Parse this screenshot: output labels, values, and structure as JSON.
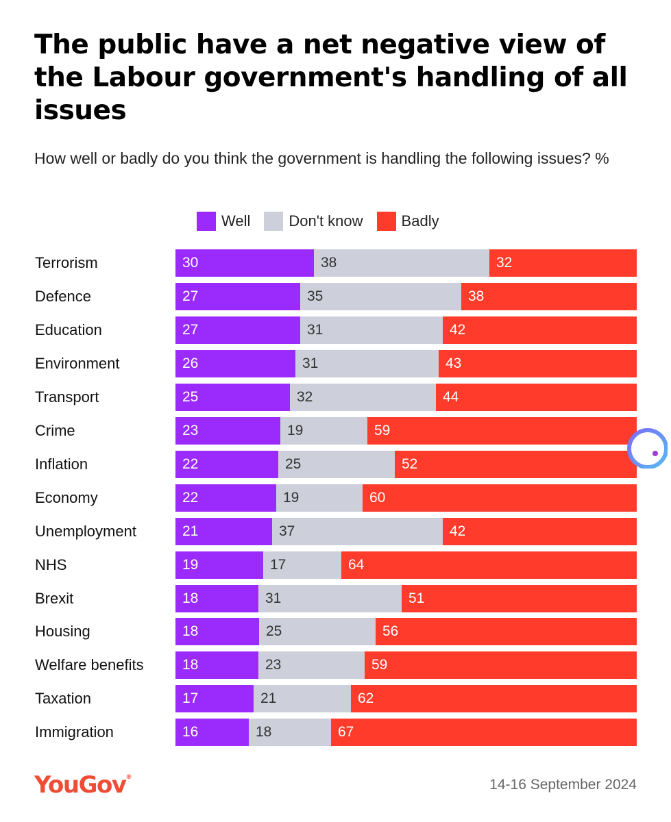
{
  "chart_data": {
    "type": "bar",
    "orientation": "horizontal",
    "stacked": true,
    "title": "The public have a net negative view of the Labour government's handling of all issues",
    "subtitle": "How well or badly do you think the government is handling the following issues? %",
    "categories": [
      "Terrorism",
      "Defence",
      "Education",
      "Environment",
      "Transport",
      "Crime",
      "Inflation",
      "Economy",
      "Unemployment",
      "NHS",
      "Brexit",
      "Housing",
      "Welfare benefits",
      "Taxation",
      "Immigration"
    ],
    "series": [
      {
        "name": "Well",
        "color": "#9b2bfc",
        "label_color": "#ffffff",
        "values": [
          30,
          27,
          27,
          26,
          25,
          23,
          22,
          22,
          21,
          19,
          18,
          18,
          18,
          17,
          16
        ]
      },
      {
        "name": "Don't know",
        "color": "#cdd0da",
        "label_color": "#333333",
        "values": [
          38,
          35,
          31,
          31,
          32,
          19,
          25,
          19,
          37,
          17,
          31,
          25,
          23,
          21,
          18
        ]
      },
      {
        "name": "Badly",
        "color": "#ff3c2b",
        "label_color": "#ffffff",
        "values": [
          32,
          38,
          42,
          43,
          44,
          59,
          52,
          60,
          42,
          64,
          51,
          56,
          59,
          62,
          67
        ]
      }
    ],
    "legend_position": "top",
    "xlim": [
      0,
      100
    ]
  },
  "footer": {
    "logo_text": "YouGov",
    "logo_mark": "®",
    "date": "14-16 September 2024"
  },
  "colors": {
    "brand": "#f04d37"
  }
}
